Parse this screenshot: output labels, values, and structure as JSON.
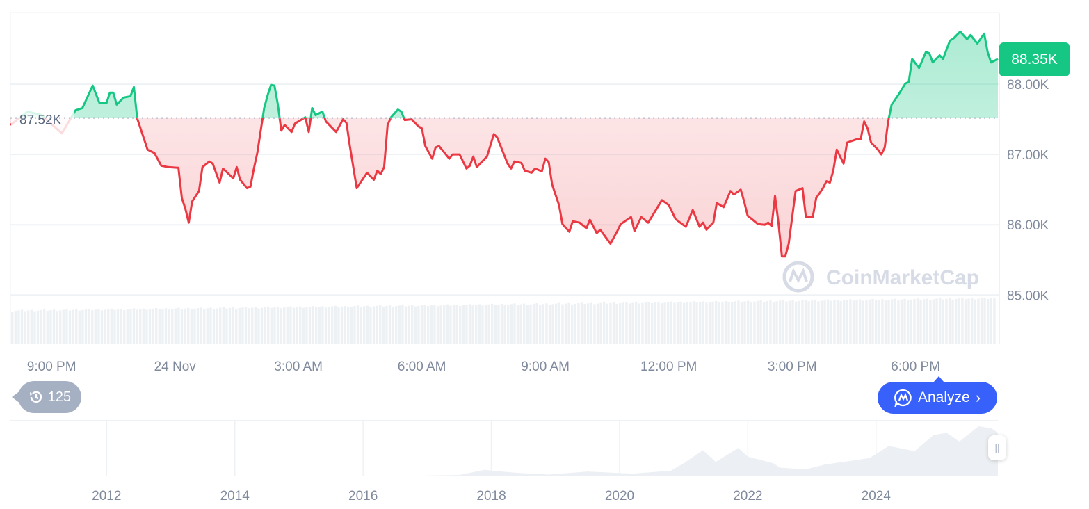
{
  "chart_data": {
    "type": "area",
    "y_ticks": [
      "85.00K",
      "86.00K",
      "87.00K",
      "88.00K"
    ],
    "y_tick_values": [
      85,
      86,
      87,
      88
    ],
    "ylim": [
      84.3,
      89.02
    ],
    "y_unit": "K",
    "x_ticks": [
      "9:00 PM",
      "24 Nov",
      "3:00 AM",
      "6:00 AM",
      "9:00 AM",
      "12:00 PM",
      "3:00 PM",
      "6:00 PM"
    ],
    "x_tick_times": [
      "21:00",
      "00:00",
      "03:00",
      "06:00",
      "09:00",
      "12:00",
      "15:00",
      "18:00"
    ],
    "xlim": [
      "20:00",
      "20:00"
    ],
    "grid": true,
    "baseline": {
      "value": 87.52,
      "label": "87.52K"
    },
    "current": {
      "value": 88.35,
      "label": "88.35K"
    },
    "colors": {
      "up": "#16c784",
      "down": "#ea3943",
      "grid": "#eff2f5",
      "volume": "#eff2f5"
    },
    "series": [
      [
        "20:00",
        87.42
      ],
      [
        "20:25",
        87.61
      ],
      [
        "20:45",
        87.56
      ],
      [
        "21:15",
        87.3
      ],
      [
        "21:35",
        87.63
      ],
      [
        "21:45",
        87.66
      ],
      [
        "22:00",
        87.98
      ],
      [
        "22:10",
        87.73
      ],
      [
        "22:20",
        87.73
      ],
      [
        "22:25",
        87.88
      ],
      [
        "22:30",
        87.88
      ],
      [
        "22:35",
        87.71
      ],
      [
        "22:45",
        87.81
      ],
      [
        "22:55",
        87.83
      ],
      [
        "23:00",
        87.96
      ],
      [
        "23:05",
        87.51
      ],
      [
        "23:20",
        87.07
      ],
      [
        "23:30",
        87.02
      ],
      [
        "23:40",
        86.84
      ],
      [
        "23:50",
        86.82
      ],
      [
        "00:05",
        86.81
      ],
      [
        "00:10",
        86.38
      ],
      [
        "00:15",
        86.23
      ],
      [
        "00:20",
        86.03
      ],
      [
        "00:25",
        86.33
      ],
      [
        "00:35",
        86.48
      ],
      [
        "00:40",
        86.82
      ],
      [
        "00:50",
        86.9
      ],
      [
        "00:55",
        86.87
      ],
      [
        "01:05",
        86.6
      ],
      [
        "01:10",
        86.8
      ],
      [
        "01:25",
        86.66
      ],
      [
        "01:30",
        86.82
      ],
      [
        "01:35",
        86.64
      ],
      [
        "01:45",
        86.52
      ],
      [
        "01:50",
        86.54
      ],
      [
        "01:55",
        86.8
      ],
      [
        "02:00",
        87.02
      ],
      [
        "02:10",
        87.66
      ],
      [
        "02:15",
        87.84
      ],
      [
        "02:20",
        87.99
      ],
      [
        "02:25",
        87.98
      ],
      [
        "02:30",
        87.71
      ],
      [
        "02:35",
        87.34
      ],
      [
        "02:40",
        87.42
      ],
      [
        "02:50",
        87.32
      ],
      [
        "02:55",
        87.44
      ],
      [
        "03:10",
        87.53
      ],
      [
        "03:15",
        87.32
      ],
      [
        "03:20",
        87.66
      ],
      [
        "03:25",
        87.56
      ],
      [
        "03:35",
        87.61
      ],
      [
        "03:40",
        87.47
      ],
      [
        "03:55",
        87.32
      ],
      [
        "04:05",
        87.5
      ],
      [
        "04:10",
        87.45
      ],
      [
        "04:15",
        87.12
      ],
      [
        "04:25",
        86.52
      ],
      [
        "04:40",
        86.74
      ],
      [
        "04:50",
        86.64
      ],
      [
        "04:55",
        86.77
      ],
      [
        "05:00",
        86.72
      ],
      [
        "05:05",
        86.82
      ],
      [
        "05:10",
        87.42
      ],
      [
        "05:15",
        87.53
      ],
      [
        "05:25",
        87.64
      ],
      [
        "05:30",
        87.61
      ],
      [
        "05:35",
        87.49
      ],
      [
        "05:45",
        87.5
      ],
      [
        "05:55",
        87.4
      ],
      [
        "06:00",
        87.37
      ],
      [
        "06:05",
        87.12
      ],
      [
        "06:15",
        86.94
      ],
      [
        "06:20",
        87.1
      ],
      [
        "06:25",
        87.12
      ],
      [
        "06:40",
        86.94
      ],
      [
        "06:45",
        87.0
      ],
      [
        "06:55",
        87.0
      ],
      [
        "07:05",
        86.8
      ],
      [
        "07:10",
        86.84
      ],
      [
        "07:15",
        86.97
      ],
      [
        "07:20",
        86.82
      ],
      [
        "07:35",
        86.97
      ],
      [
        "07:45",
        87.29
      ],
      [
        "07:50",
        87.24
      ],
      [
        "08:05",
        86.87
      ],
      [
        "08:10",
        86.8
      ],
      [
        "08:15",
        86.9
      ],
      [
        "08:25",
        86.88
      ],
      [
        "08:30",
        86.77
      ],
      [
        "08:40",
        86.74
      ],
      [
        "08:45",
        86.8
      ],
      [
        "08:55",
        86.76
      ],
      [
        "09:00",
        86.94
      ],
      [
        "09:05",
        86.89
      ],
      [
        "09:10",
        86.57
      ],
      [
        "09:20",
        86.28
      ],
      [
        "09:25",
        86.01
      ],
      [
        "09:35",
        85.9
      ],
      [
        "09:40",
        86.05
      ],
      [
        "09:50",
        86.03
      ],
      [
        "10:00",
        85.95
      ],
      [
        "10:05",
        86.07
      ],
      [
        "10:15",
        85.88
      ],
      [
        "10:20",
        85.93
      ],
      [
        "10:35",
        85.73
      ],
      [
        "10:45",
        85.91
      ],
      [
        "10:50",
        86.01
      ],
      [
        "11:05",
        86.11
      ],
      [
        "11:10",
        85.91
      ],
      [
        "11:20",
        86.11
      ],
      [
        "11:30",
        86.03
      ],
      [
        "11:50",
        86.35
      ],
      [
        "12:00",
        86.28
      ],
      [
        "12:10",
        86.08
      ],
      [
        "12:25",
        85.97
      ],
      [
        "12:35",
        86.21
      ],
      [
        "12:45",
        85.97
      ],
      [
        "12:50",
        86.03
      ],
      [
        "12:55",
        85.93
      ],
      [
        "13:05",
        86.03
      ],
      [
        "13:10",
        86.31
      ],
      [
        "13:20",
        86.25
      ],
      [
        "13:30",
        86.48
      ],
      [
        "13:35",
        86.43
      ],
      [
        "13:45",
        86.5
      ],
      [
        "13:50",
        86.33
      ],
      [
        "13:55",
        86.13
      ],
      [
        "14:10",
        86.01
      ],
      [
        "14:20",
        86.0
      ],
      [
        "14:25",
        86.03
      ],
      [
        "14:30",
        85.98
      ],
      [
        "14:35",
        86.41
      ],
      [
        "14:40",
        86.03
      ],
      [
        "14:45",
        85.55
      ],
      [
        "14:50",
        85.55
      ],
      [
        "14:55",
        85.73
      ],
      [
        "15:05",
        86.48
      ],
      [
        "15:15",
        86.52
      ],
      [
        "15:20",
        86.11
      ],
      [
        "15:30",
        86.11
      ],
      [
        "15:35",
        86.38
      ],
      [
        "15:45",
        86.52
      ],
      [
        "15:50",
        86.62
      ],
      [
        "15:55",
        86.6
      ],
      [
        "16:00",
        86.77
      ],
      [
        "16:05",
        87.07
      ],
      [
        "16:15",
        86.87
      ],
      [
        "16:20",
        87.17
      ],
      [
        "16:35",
        87.22
      ],
      [
        "16:40",
        87.22
      ],
      [
        "16:45",
        87.47
      ],
      [
        "16:50",
        87.37
      ],
      [
        "16:55",
        87.17
      ],
      [
        "17:05",
        87.07
      ],
      [
        "17:10",
        87.0
      ],
      [
        "17:15",
        87.1
      ],
      [
        "17:20",
        87.47
      ],
      [
        "17:25",
        87.71
      ],
      [
        "17:35",
        87.85
      ],
      [
        "17:45",
        88.01
      ],
      [
        "17:50",
        88.03
      ],
      [
        "17:55",
        88.36
      ],
      [
        "18:05",
        88.23
      ],
      [
        "18:15",
        88.46
      ],
      [
        "18:20",
        88.44
      ],
      [
        "18:25",
        88.31
      ],
      [
        "18:35",
        88.41
      ],
      [
        "18:40",
        88.36
      ],
      [
        "18:50",
        88.62
      ],
      [
        "18:55",
        88.65
      ],
      [
        "19:05",
        88.75
      ],
      [
        "19:15",
        88.64
      ],
      [
        "19:20",
        88.7
      ],
      [
        "19:30",
        88.58
      ],
      [
        "19:40",
        88.72
      ],
      [
        "19:45",
        88.46
      ],
      [
        "19:50",
        88.31
      ],
      [
        "20:00",
        88.36
      ]
    ],
    "navigator": {
      "x_ticks": [
        "2012",
        "2014",
        "2016",
        "2018",
        "2020",
        "2022",
        "2024"
      ],
      "xlim": [
        2010.5,
        2025.9
      ],
      "series": [
        [
          2010.5,
          0.1
        ],
        [
          2013.8,
          0.5
        ],
        [
          2013.9,
          1
        ],
        [
          2014.5,
          0.6
        ],
        [
          2016.5,
          0.7
        ],
        [
          2017.5,
          3
        ],
        [
          2017.9,
          15
        ],
        [
          2018.0,
          13
        ],
        [
          2018.4,
          8
        ],
        [
          2018.9,
          4
        ],
        [
          2019.5,
          11
        ],
        [
          2020.0,
          7.5
        ],
        [
          2020.2,
          6
        ],
        [
          2020.8,
          13
        ],
        [
          2021.0,
          30
        ],
        [
          2021.3,
          60
        ],
        [
          2021.5,
          33
        ],
        [
          2021.85,
          65
        ],
        [
          2022.0,
          45
        ],
        [
          2022.4,
          30
        ],
        [
          2022.5,
          20
        ],
        [
          2022.9,
          16
        ],
        [
          2023.2,
          27
        ],
        [
          2023.9,
          42
        ],
        [
          2024.2,
          70
        ],
        [
          2024.6,
          58
        ],
        [
          2024.9,
          95
        ],
        [
          2025.1,
          100
        ],
        [
          2025.3,
          80
        ],
        [
          2025.6,
          115
        ],
        [
          2025.8,
          110
        ],
        [
          2025.9,
          100
        ]
      ]
    }
  },
  "ui": {
    "history_badge": "125",
    "analyze_label": "Analyze",
    "watermark": "CoinMarketCap",
    "icons": {
      "history": "history-clock-icon",
      "analyze": "cmc-chat-icon",
      "chevron": "chevron-right-icon",
      "handle": "drag-handle-icon"
    }
  }
}
